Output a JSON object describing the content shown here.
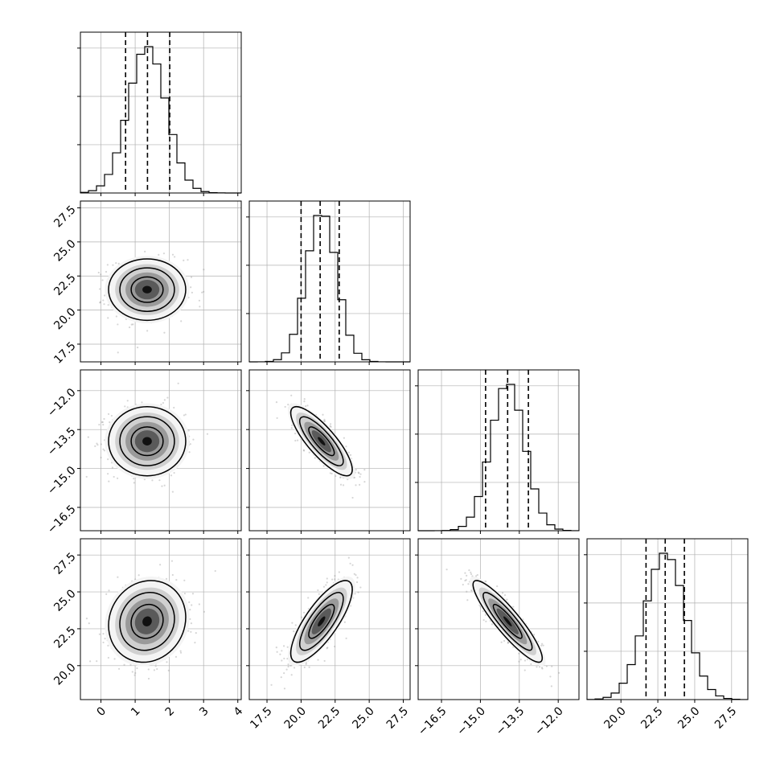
{
  "chart_data": {
    "type": "corner",
    "grid": true,
    "legend": "none",
    "params": [
      {
        "range": [
          -0.6,
          4.1
        ],
        "ticks": [
          0,
          1,
          2,
          3,
          4
        ],
        "tick_labels": [
          "0",
          "1",
          "2",
          "3",
          "4"
        ],
        "mean": 1.35,
        "sd": 0.55,
        "quantiles": [
          0.72,
          1.36,
          2.01
        ]
      },
      {
        "range": [
          16.2,
          28.0
        ],
        "ticks": [
          17.5,
          20.0,
          22.5,
          25.0,
          27.5
        ],
        "tick_labels": [
          "17.5",
          "20.0",
          "22.5",
          "25.0",
          "27.5"
        ],
        "mean": 21.5,
        "sd": 1.1,
        "quantiles": [
          20.0,
          21.4,
          22.8
        ]
      },
      {
        "range": [
          -17.4,
          -11.2
        ],
        "ticks": [
          -16.5,
          -15.0,
          -13.5,
          -12.0
        ],
        "tick_labels": [
          "−16.5",
          "−15.0",
          "−13.5",
          "−12.0"
        ],
        "mean": -13.95,
        "sd": 0.65,
        "quantiles": [
          -14.8,
          -13.95,
          -13.15
        ]
      },
      {
        "range": [
          17.7,
          28.6
        ],
        "ticks": [
          20.0,
          22.5,
          25.0,
          27.5
        ],
        "tick_labels": [
          "20.0",
          "22.5",
          "25.0",
          "27.5"
        ],
        "mean": 23.0,
        "sd": 1.35,
        "quantiles": [
          21.7,
          23.0,
          24.3
        ]
      }
    ],
    "y_tick_params": [
      1,
      2,
      3
    ],
    "pairs": [
      {
        "row": 1,
        "col": 0,
        "rho": 0.0
      },
      {
        "row": 2,
        "col": 0,
        "rho": 0.0
      },
      {
        "row": 2,
        "col": 1,
        "rho": -0.82
      },
      {
        "row": 3,
        "col": 0,
        "rho": 0.1
      },
      {
        "row": 3,
        "col": 1,
        "rho": 0.78
      },
      {
        "row": 3,
        "col": 2,
        "rho": -0.9
      }
    ],
    "colors": {
      "line": "#000000",
      "grid": "#b0b0b0",
      "points": "#8a8a8a"
    }
  }
}
